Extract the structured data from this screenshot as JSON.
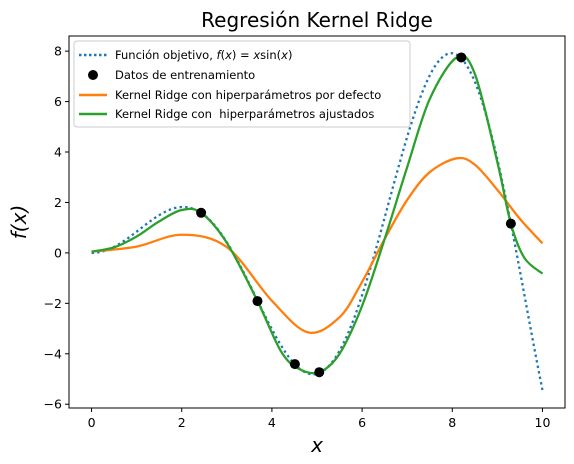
{
  "chart_data": {
    "type": "line",
    "title": "Regresión Kernel Ridge",
    "xlabel": "x",
    "ylabel": "f(x)",
    "xlim": [
      -0.5,
      10.5
    ],
    "ylim": [
      -6.15,
      8.6
    ],
    "x_ticks": [
      0,
      2,
      4,
      6,
      8,
      10
    ],
    "y_ticks": [
      -6,
      -4,
      -2,
      0,
      2,
      4,
      6,
      8
    ],
    "x_tick_labels": [
      "0",
      "2",
      "4",
      "6",
      "8",
      "10"
    ],
    "y_tick_labels": [
      "−6",
      "−4",
      "−2",
      "0",
      "2",
      "4",
      "6",
      "8"
    ],
    "legend_position": "top-left",
    "series": [
      {
        "name": "Función objetivo, f(x) = x sin(x)",
        "style": "dotted",
        "color": "#1f77b4",
        "function": "x*sin(x)",
        "x": [
          0,
          0.5,
          1,
          1.5,
          2,
          2.5,
          3,
          3.5,
          4,
          4.5,
          5,
          5.5,
          6,
          6.5,
          7,
          7.5,
          8,
          8.5,
          9,
          9.5,
          10
        ],
        "y": [
          0,
          0.24,
          0.84,
          1.5,
          1.82,
          1.5,
          0.42,
          -1.23,
          -3.03,
          -4.4,
          -4.79,
          -3.88,
          -1.68,
          1.4,
          4.6,
          7.04,
          7.91,
          6.8,
          3.71,
          -0.72,
          -5.44
        ]
      },
      {
        "name": "Datos de entrenamiento",
        "style": "markers",
        "color": "#000000",
        "x": [
          2.43,
          3.68,
          4.51,
          5.05,
          8.2,
          9.3
        ],
        "y": [
          1.59,
          -1.91,
          -4.41,
          -4.73,
          7.75,
          1.16
        ]
      },
      {
        "name": "Kernel Ridge con hiperparámetros por defecto",
        "style": "solid",
        "color": "#ff7f0e",
        "x": [
          0,
          1,
          2,
          3,
          4,
          4.8,
          5.5,
          6,
          6.5,
          7,
          7.5,
          8.1,
          8.5,
          9,
          9.5,
          10
        ],
        "y": [
          0.05,
          0.25,
          0.72,
          0.23,
          -1.9,
          -3.15,
          -2.55,
          -1.15,
          0.55,
          2.1,
          3.2,
          3.75,
          3.5,
          2.5,
          1.35,
          0.38
        ]
      },
      {
        "name": "Kernel Ridge con  hiperparámetros ajustados",
        "style": "solid",
        "color": "#2ca02c",
        "x": [
          0,
          0.5,
          1,
          1.5,
          2,
          2.43,
          3,
          3.68,
          4.2,
          4.6,
          5.05,
          5.5,
          6,
          6.5,
          7,
          7.5,
          8.1,
          8.5,
          9,
          9.3,
          9.6,
          10
        ],
        "y": [
          0.05,
          0.22,
          0.65,
          1.25,
          1.7,
          1.59,
          0.4,
          -1.91,
          -3.9,
          -4.6,
          -4.73,
          -4.0,
          -2.1,
          0.55,
          3.4,
          6.1,
          7.75,
          7.1,
          3.6,
          1.16,
          -0.2,
          -0.82
        ]
      }
    ],
    "legend": [
      "Función objetivo, f(x) = x sin(x)",
      "Datos de entrenamiento",
      "Kernel Ridge con hiperparámetros por defecto",
      "Kernel Ridge con  hiperparámetros ajustados"
    ]
  }
}
